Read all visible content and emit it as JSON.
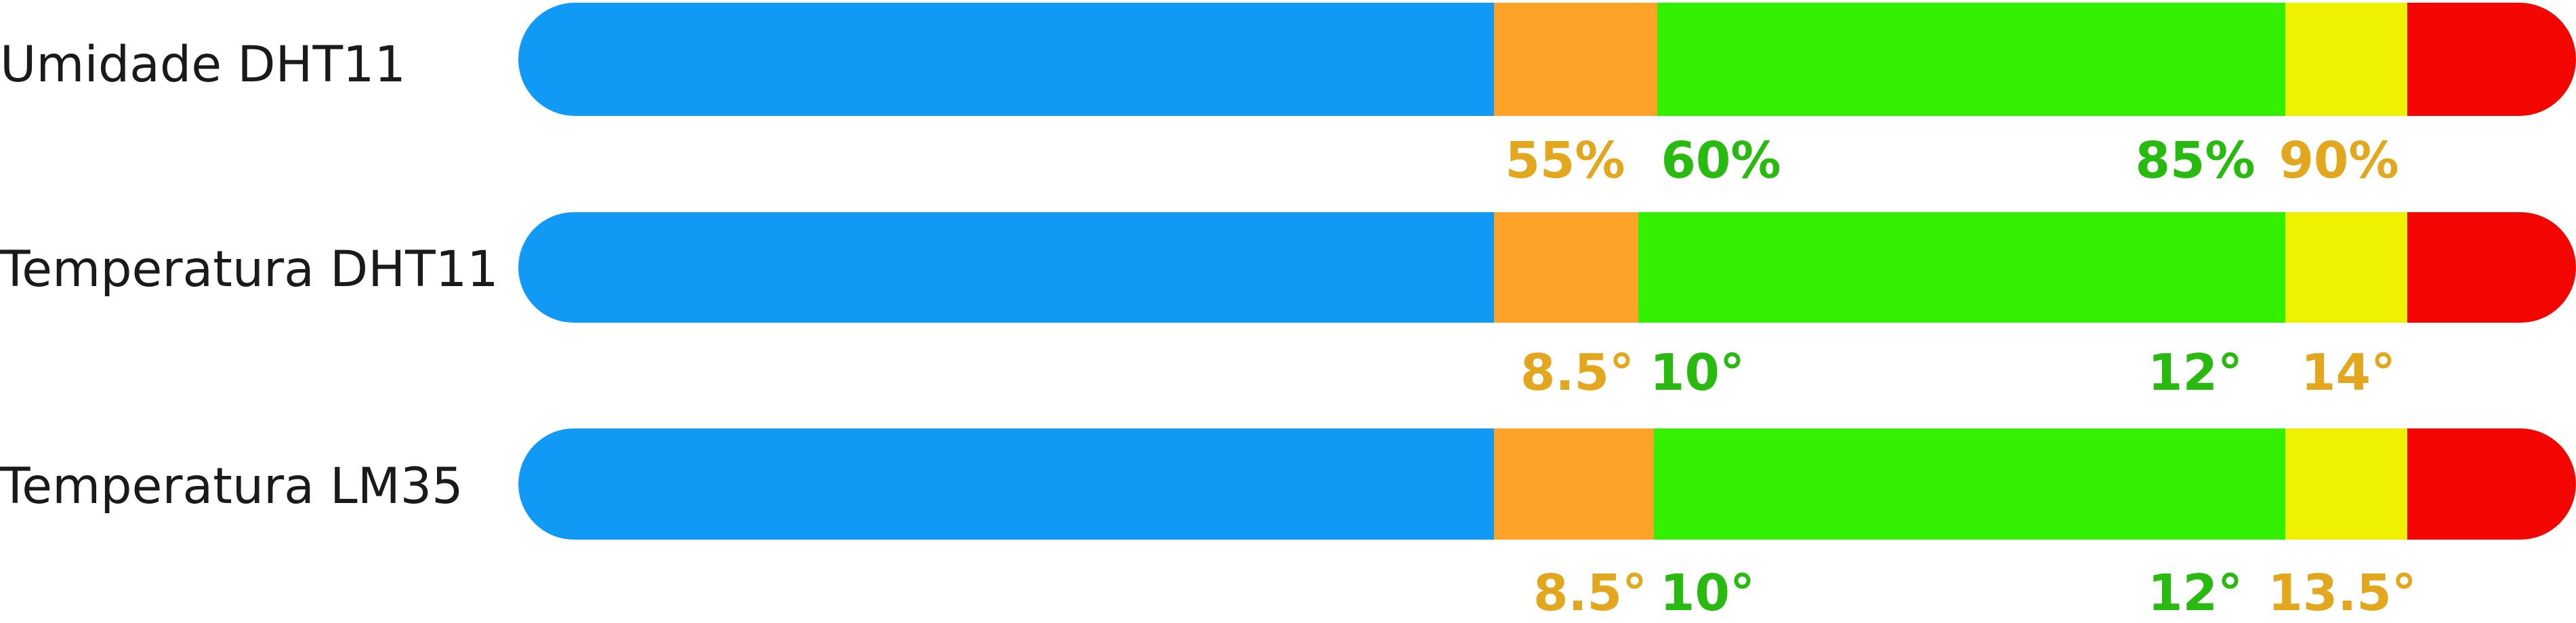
{
  "chart_data": {
    "type": "bar",
    "title": "",
    "colors": {
      "blue": "#1199F6",
      "orange": "#FFA228",
      "green": "#33EF00",
      "yellow": "#EEF200",
      "red": "#F30600",
      "label_orange": "#E2A71D",
      "label_green": "#29BA10"
    },
    "rows": [
      {
        "label": "Umidade DHT11",
        "segments": [
          "blue",
          "orange",
          "green",
          "yellow",
          "red"
        ],
        "thresholds": [
          {
            "text": "55%",
            "color": "label_orange"
          },
          {
            "text": "60%",
            "color": "label_green"
          },
          {
            "text": "85%",
            "color": "label_green"
          },
          {
            "text": "90%",
            "color": "label_orange"
          }
        ]
      },
      {
        "label": "Temperatura DHT11",
        "segments": [
          "blue",
          "orange",
          "green",
          "yellow",
          "red"
        ],
        "thresholds": [
          {
            "text": "8.5°",
            "color": "label_orange"
          },
          {
            "text": "10°",
            "color": "label_green"
          },
          {
            "text": "12°",
            "color": "label_green"
          },
          {
            "text": "14°",
            "color": "label_orange"
          }
        ]
      },
      {
        "label": "Temperatura LM35",
        "segments": [
          "blue",
          "orange",
          "green",
          "yellow",
          "red"
        ],
        "thresholds": [
          {
            "text": "8.5°",
            "color": "label_orange"
          },
          {
            "text": "10°",
            "color": "label_green"
          },
          {
            "text": "12°",
            "color": "label_green"
          },
          {
            "text": "13.5°",
            "color": "label_orange"
          }
        ]
      }
    ]
  }
}
